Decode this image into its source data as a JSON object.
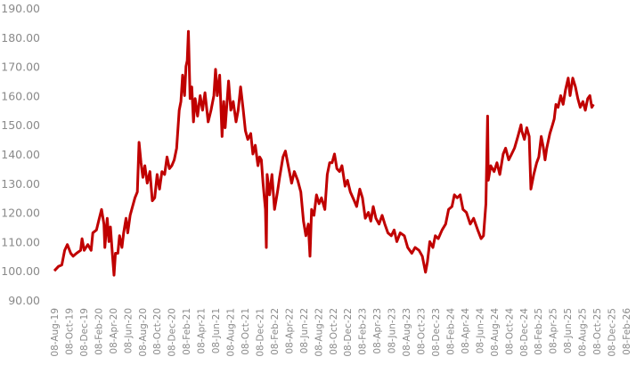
{
  "chart_data": {
    "type": "line",
    "title": "",
    "xlabel": "",
    "ylabel": "",
    "ylim": [
      90,
      190
    ],
    "yticks": [
      "90.00",
      "100.00",
      "110.00",
      "120.00",
      "130.00",
      "140.00",
      "150.00",
      "160.00",
      "170.00",
      "180.00",
      "190.00"
    ],
    "xticks": [
      "08-Aug-19",
      "08-Oct-19",
      "08-Dec-19",
      "08-Feb-20",
      "08-Apr-20",
      "08-Jun-20",
      "08-Aug-20",
      "08-Oct-20",
      "08-Dec-20",
      "08-Feb-21",
      "08-Apr-21",
      "08-Jun-21",
      "08-Aug-21",
      "08-Oct-21",
      "08-Dec-21",
      "08-Feb-22",
      "08-Apr-22",
      "08-Jun-22",
      "08-Aug-22",
      "08-Oct-22",
      "08-Dec-22",
      "08-Feb-23",
      "08-Apr-23",
      "08-Jun-23",
      "08-Aug-23",
      "08-Oct-23",
      "08-Dec-23",
      "08-Feb-24",
      "08-Apr-24",
      "08-Jun-24",
      "08-Aug-24",
      "08-Oct-24",
      "08-Dec-24",
      "08-Feb-25",
      "08-Apr-25",
      "08-Jun-25",
      "08-Aug-25",
      "08-Oct-25",
      "08-Dec-25",
      "08-Feb-26"
    ],
    "grid": false,
    "legend": "none",
    "line_color": "#c00000",
    "series": [
      {
        "points": [
          [
            "2019-08-08",
            100
          ],
          [
            "2019-08-25",
            101.5
          ],
          [
            "2019-09-08",
            102
          ],
          [
            "2019-09-20",
            107
          ],
          [
            "2019-10-01",
            109
          ],
          [
            "2019-10-15",
            106
          ],
          [
            "2019-10-25",
            105
          ],
          [
            "2019-11-08",
            106
          ],
          [
            "2019-11-25",
            107
          ],
          [
            "2019-12-01",
            111
          ],
          [
            "2019-12-10",
            107
          ],
          [
            "2019-12-25",
            109
          ],
          [
            "2020-01-08",
            107
          ],
          [
            "2020-01-15",
            113
          ],
          [
            "2020-01-30",
            114
          ],
          [
            "2020-02-08",
            117
          ],
          [
            "2020-02-20",
            121
          ],
          [
            "2020-03-01",
            116
          ],
          [
            "2020-03-05",
            108
          ],
          [
            "2020-03-15",
            118
          ],
          [
            "2020-03-22",
            110
          ],
          [
            "2020-03-28",
            115
          ],
          [
            "2020-04-05",
            106
          ],
          [
            "2020-04-12",
            98.5
          ],
          [
            "2020-04-18",
            106
          ],
          [
            "2020-04-28",
            106
          ],
          [
            "2020-05-05",
            112
          ],
          [
            "2020-05-15",
            108
          ],
          [
            "2020-05-22",
            113
          ],
          [
            "2020-06-01",
            118
          ],
          [
            "2020-06-08",
            113
          ],
          [
            "2020-06-18",
            119
          ],
          [
            "2020-06-28",
            122
          ],
          [
            "2020-07-08",
            125
          ],
          [
            "2020-07-18",
            127
          ],
          [
            "2020-07-25",
            144
          ],
          [
            "2020-08-02",
            137
          ],
          [
            "2020-08-10",
            132
          ],
          [
            "2020-08-18",
            136
          ],
          [
            "2020-08-28",
            130
          ],
          [
            "2020-09-08",
            134
          ],
          [
            "2020-09-18",
            124
          ],
          [
            "2020-09-28",
            125
          ],
          [
            "2020-10-08",
            133
          ],
          [
            "2020-10-18",
            128
          ],
          [
            "2020-10-28",
            134
          ],
          [
            "2020-11-08",
            133
          ],
          [
            "2020-11-18",
            139
          ],
          [
            "2020-11-28",
            135
          ],
          [
            "2020-12-08",
            136
          ],
          [
            "2020-12-18",
            138
          ],
          [
            "2020-12-28",
            142
          ],
          [
            "2021-01-08",
            155
          ],
          [
            "2021-01-15",
            158
          ],
          [
            "2021-01-22",
            167
          ],
          [
            "2021-01-30",
            160
          ],
          [
            "2021-02-05",
            170
          ],
          [
            "2021-02-10",
            172
          ],
          [
            "2021-02-15",
            182
          ],
          [
            "2021-02-22",
            159
          ],
          [
            "2021-03-01",
            163
          ],
          [
            "2021-03-08",
            151
          ],
          [
            "2021-03-15",
            159
          ],
          [
            "2021-03-25",
            153
          ],
          [
            "2021-04-05",
            160
          ],
          [
            "2021-04-15",
            155
          ],
          [
            "2021-04-25",
            161
          ],
          [
            "2021-05-08",
            151
          ],
          [
            "2021-05-20",
            155
          ],
          [
            "2021-06-01",
            160
          ],
          [
            "2021-06-08",
            169
          ],
          [
            "2021-06-15",
            160
          ],
          [
            "2021-06-25",
            167
          ],
          [
            "2021-07-05",
            146
          ],
          [
            "2021-07-12",
            158
          ],
          [
            "2021-07-18",
            149
          ],
          [
            "2021-08-01",
            165
          ],
          [
            "2021-08-10",
            155
          ],
          [
            "2021-08-20",
            158
          ],
          [
            "2021-09-01",
            151
          ],
          [
            "2021-09-10",
            155
          ],
          [
            "2021-09-20",
            163
          ],
          [
            "2021-10-01",
            155
          ],
          [
            "2021-10-10",
            148
          ],
          [
            "2021-10-20",
            145
          ],
          [
            "2021-11-01",
            147
          ],
          [
            "2021-11-10",
            140
          ],
          [
            "2021-11-20",
            143
          ],
          [
            "2021-12-01",
            136
          ],
          [
            "2021-12-08",
            139
          ],
          [
            "2021-12-15",
            138
          ],
          [
            "2021-12-22",
            130
          ],
          [
            "2022-01-01",
            121
          ],
          [
            "2022-01-05",
            108
          ],
          [
            "2022-01-08",
            133
          ],
          [
            "2022-01-18",
            126
          ],
          [
            "2022-01-28",
            133
          ],
          [
            "2022-02-08",
            121
          ],
          [
            "2022-02-20",
            127
          ],
          [
            "2022-03-01",
            132
          ],
          [
            "2022-03-15",
            139
          ],
          [
            "2022-03-25",
            141
          ],
          [
            "2022-04-08",
            135
          ],
          [
            "2022-04-20",
            130
          ],
          [
            "2022-05-01",
            134
          ],
          [
            "2022-05-15",
            131
          ],
          [
            "2022-05-28",
            127
          ],
          [
            "2022-06-08",
            117
          ],
          [
            "2022-06-18",
            112
          ],
          [
            "2022-06-28",
            116
          ],
          [
            "2022-07-05",
            105
          ],
          [
            "2022-07-12",
            121
          ],
          [
            "2022-07-22",
            119
          ],
          [
            "2022-08-01",
            126
          ],
          [
            "2022-08-12",
            123
          ],
          [
            "2022-08-22",
            125
          ],
          [
            "2022-09-05",
            121
          ],
          [
            "2022-09-15",
            133
          ],
          [
            "2022-09-25",
            137
          ],
          [
            "2022-10-05",
            137
          ],
          [
            "2022-10-15",
            140
          ],
          [
            "2022-10-25",
            135
          ],
          [
            "2022-11-05",
            134
          ],
          [
            "2022-11-15",
            136
          ],
          [
            "2022-11-28",
            129
          ],
          [
            "2022-12-08",
            131
          ],
          [
            "2022-12-20",
            127
          ],
          [
            "2023-01-05",
            124
          ],
          [
            "2023-01-15",
            122
          ],
          [
            "2023-01-28",
            128
          ],
          [
            "2023-02-08",
            125
          ],
          [
            "2023-02-20",
            118
          ],
          [
            "2023-03-05",
            120
          ],
          [
            "2023-03-15",
            117
          ],
          [
            "2023-03-25",
            122
          ],
          [
            "2023-04-05",
            118
          ],
          [
            "2023-04-18",
            116
          ],
          [
            "2023-05-01",
            119
          ],
          [
            "2023-05-12",
            116
          ],
          [
            "2023-05-25",
            113
          ],
          [
            "2023-06-08",
            112
          ],
          [
            "2023-06-20",
            114
          ],
          [
            "2023-07-01",
            110
          ],
          [
            "2023-07-15",
            113
          ],
          [
            "2023-08-01",
            112
          ],
          [
            "2023-08-15",
            108
          ],
          [
            "2023-09-01",
            106
          ],
          [
            "2023-09-15",
            108
          ],
          [
            "2023-10-01",
            107
          ],
          [
            "2023-10-15",
            105
          ],
          [
            "2023-10-28",
            99.5
          ],
          [
            "2023-11-05",
            103
          ],
          [
            "2023-11-15",
            110
          ],
          [
            "2023-11-28",
            108
          ],
          [
            "2023-12-08",
            112
          ],
          [
            "2023-12-20",
            111
          ],
          [
            "2024-01-05",
            114
          ],
          [
            "2024-01-20",
            116
          ],
          [
            "2024-02-01",
            121
          ],
          [
            "2024-02-15",
            122
          ],
          [
            "2024-02-25",
            126
          ],
          [
            "2024-03-08",
            125
          ],
          [
            "2024-03-20",
            126
          ],
          [
            "2024-04-01",
            121
          ],
          [
            "2024-04-15",
            120
          ],
          [
            "2024-05-01",
            116
          ],
          [
            "2024-05-15",
            118
          ],
          [
            "2024-06-01",
            114
          ],
          [
            "2024-06-15",
            111
          ],
          [
            "2024-06-25",
            112
          ],
          [
            "2024-07-05",
            123
          ],
          [
            "2024-07-12",
            153
          ],
          [
            "2024-07-15",
            131
          ],
          [
            "2024-07-25",
            136
          ],
          [
            "2024-08-08",
            134
          ],
          [
            "2024-08-20",
            137
          ],
          [
            "2024-09-01",
            133
          ],
          [
            "2024-09-15",
            140
          ],
          [
            "2024-09-25",
            142
          ],
          [
            "2024-10-08",
            138
          ],
          [
            "2024-10-20",
            140
          ],
          [
            "2024-11-01",
            142
          ],
          [
            "2024-11-15",
            146
          ],
          [
            "2024-11-28",
            150
          ],
          [
            "2024-12-01",
            148
          ],
          [
            "2024-12-12",
            145
          ],
          [
            "2024-12-22",
            149
          ],
          [
            "2025-01-01",
            146
          ],
          [
            "2025-01-08",
            128
          ],
          [
            "2025-01-20",
            133
          ],
          [
            "2025-02-01",
            137
          ],
          [
            "2025-02-10",
            139
          ],
          [
            "2025-02-20",
            146
          ],
          [
            "2025-03-01",
            142
          ],
          [
            "2025-03-08",
            138
          ],
          [
            "2025-03-15",
            142
          ],
          [
            "2025-03-28",
            147
          ],
          [
            "2025-04-08",
            150
          ],
          [
            "2025-04-15",
            152
          ],
          [
            "2025-04-22",
            157
          ],
          [
            "2025-05-01",
            156
          ],
          [
            "2025-05-12",
            160
          ],
          [
            "2025-05-22",
            157
          ],
          [
            "2025-06-01",
            162
          ],
          [
            "2025-06-12",
            166
          ],
          [
            "2025-06-20",
            160
          ],
          [
            "2025-07-01",
            166
          ],
          [
            "2025-07-12",
            163
          ],
          [
            "2025-07-22",
            159
          ],
          [
            "2025-08-01",
            156
          ],
          [
            "2025-08-12",
            158
          ],
          [
            "2025-08-22",
            155
          ],
          [
            "2025-09-01",
            159
          ],
          [
            "2025-09-10",
            160
          ],
          [
            "2025-09-18",
            156
          ],
          [
            "2025-09-25",
            157
          ]
        ]
      }
    ]
  }
}
